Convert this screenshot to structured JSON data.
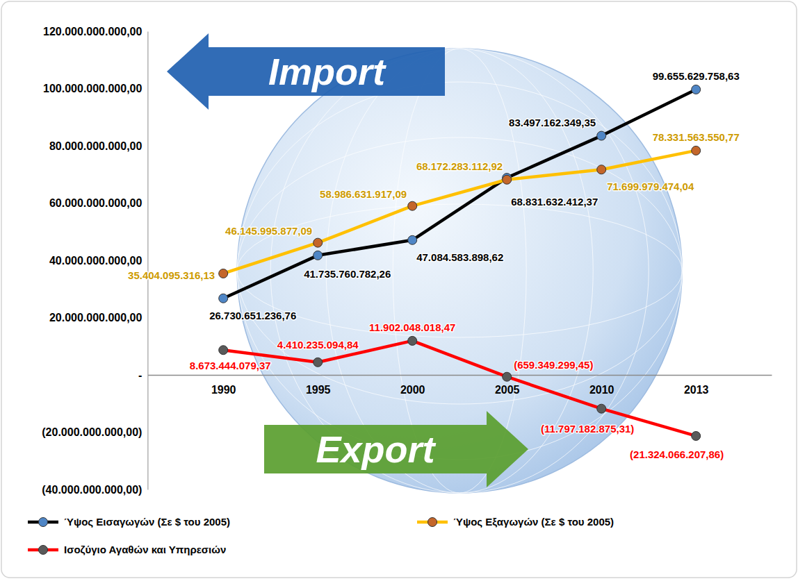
{
  "chart_data": {
    "type": "line",
    "categories": [
      "1990",
      "1995",
      "2000",
      "2005",
      "2010",
      "2013"
    ],
    "series": [
      {
        "name": "Ύψος Εισαγωγών (Σε $ του 2005)",
        "color": "#000000",
        "marker": "circle",
        "line_style": "solid",
        "values": [
          26730651236.76,
          41735760782.26,
          47084583898.62,
          68831632412.37,
          83497162349.35,
          99655629758.63
        ],
        "value_labels": [
          "26.730.651.236,76",
          "41.735.760.782,26",
          "47.084.583.898,62",
          "68.831.632.412,37",
          "83.497.162.349,35",
          "99.655.629.758,63"
        ]
      },
      {
        "name": "Ύψος Εξαγωγών (Σε $ του 2005)",
        "color": "#ffc000",
        "marker": "circle",
        "line_style": "solid",
        "values": [
          35404095316.13,
          46145995877.09,
          58986631917.09,
          68172283112.92,
          71699979474.04,
          78331563550.77
        ],
        "value_labels": [
          "35.404.095.316,13",
          "46.145.995.877,09",
          "58.986.631.917,09",
          "68.172.283.112,92",
          "71.699.979.474,04",
          "78.331.563.550,77"
        ]
      },
      {
        "name": "Ισοζύγιο Αγαθών και Υπηρεσιών",
        "color": "#ff0000",
        "marker": "circle",
        "line_style": "solid",
        "values": [
          8673444079.37,
          4410235094.84,
          11902048018.47,
          -659349299.45,
          -11797182875.31,
          -21324066207.86
        ],
        "value_labels": [
          "8.673.444.079,37",
          "4.410.235.094,84",
          "11.902.048.018,47",
          "(659.349.299,45)",
          "(11.797.182.875,31)",
          "(21.324.066.207,86)"
        ]
      }
    ],
    "ylim": [
      -40000000000,
      120000000000
    ],
    "yticks": [
      {
        "value": -40000000000,
        "label": "(40.000.000.000,00)"
      },
      {
        "value": -20000000000,
        "label": "(20.000.000.000,00)"
      },
      {
        "value": 0,
        "label": "-"
      },
      {
        "value": 20000000000,
        "label": "20.000.000.000,00"
      },
      {
        "value": 40000000000,
        "label": "40.000.000.000,00"
      },
      {
        "value": 60000000000,
        "label": "60.000.000.000,00"
      },
      {
        "value": 80000000000,
        "label": "80.000.000.000,00"
      },
      {
        "value": 100000000000,
        "label": "100.000.000.000,00"
      },
      {
        "value": 120000000000,
        "label": "120.000.000.000,00"
      }
    ],
    "grid": false,
    "legend": "bottom",
    "data_labels": true,
    "annotations": [
      "Import",
      "Export"
    ]
  }
}
